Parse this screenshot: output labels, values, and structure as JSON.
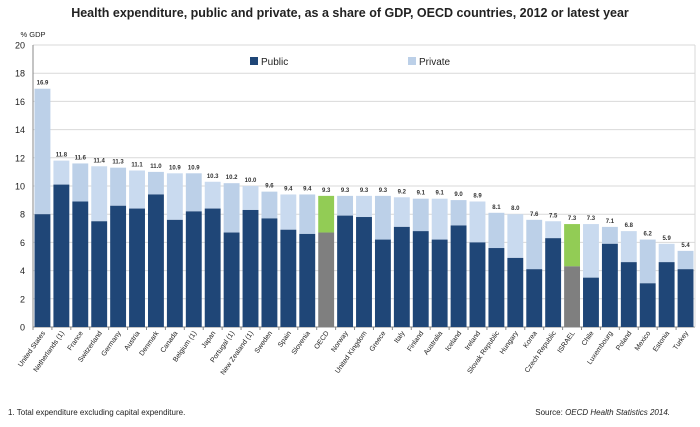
{
  "chart_data": {
    "type": "bar",
    "stacked": true,
    "title": "Health expenditure, public and private, as a share of GDP, OECD countries, 2012 or latest year",
    "ylabel": "% GDP",
    "ylim": [
      0,
      20
    ],
    "yticks": [
      0,
      2,
      4,
      6,
      8,
      10,
      12,
      14,
      16,
      18,
      20
    ],
    "grid": true,
    "legend": "top-center",
    "categories": [
      "United States",
      "Netherlands (1)",
      "France",
      "Switzerland",
      "Germany",
      "Austria",
      "Denmark",
      "Canada",
      "Belgium (1)",
      "Japan",
      "Portugal (1)",
      "New Zealand (1)",
      "Sweden",
      "Spain",
      "Slovenia",
      "OECD",
      "Norway",
      "United Kingdom",
      "Greece",
      "Italy",
      "Finland",
      "Australia",
      "Iceland",
      "Ireland",
      "Slovak Republic",
      "Hungary",
      "Korea",
      "Czech Republic",
      "ISRAEL",
      "Chile",
      "Luxembourg",
      "Poland",
      "Mexico",
      "Estonia",
      "Turkey"
    ],
    "totals": [
      16.9,
      11.8,
      11.6,
      11.4,
      11.3,
      11.1,
      11.0,
      10.9,
      10.9,
      10.3,
      10.2,
      10.0,
      9.6,
      9.4,
      9.4,
      9.3,
      9.3,
      9.3,
      9.3,
      9.2,
      9.1,
      9.1,
      9.0,
      8.9,
      8.1,
      8.0,
      7.6,
      7.5,
      7.3,
      7.3,
      7.1,
      6.8,
      6.2,
      5.9,
      5.4
    ],
    "total_labels": [
      "16.9",
      "11.8",
      "11.6",
      "11.4",
      "11.3",
      "11.1",
      "11.0",
      "10.9",
      "10.9",
      "10.3",
      "10.2",
      "10.0",
      "9.6",
      "9.4",
      "9.4",
      "9.3",
      "9.3",
      "9.3",
      "9.3",
      "9.2",
      "9.1",
      "9.1",
      "9.0",
      "8.9",
      "8.1",
      "8.0",
      "7.6",
      "7.5",
      "7.3",
      "7.3",
      "7.1",
      "6.8",
      "6.2",
      "5.9",
      "5.4"
    ],
    "series": [
      {
        "name": "Public",
        "values": [
          8.0,
          10.1,
          8.9,
          7.5,
          8.6,
          8.4,
          9.4,
          7.6,
          8.2,
          8.4,
          6.7,
          8.3,
          7.7,
          6.9,
          6.6,
          6.7,
          7.9,
          7.8,
          6.2,
          7.1,
          6.8,
          6.2,
          7.2,
          6.0,
          5.6,
          4.9,
          4.1,
          6.3,
          4.3,
          3.5,
          5.9,
          4.6,
          3.1,
          4.6,
          4.1
        ]
      },
      {
        "name": "Private",
        "values": [
          8.9,
          1.7,
          2.7,
          3.9,
          2.7,
          2.7,
          1.6,
          3.3,
          2.7,
          1.9,
          3.5,
          1.7,
          1.9,
          2.5,
          2.8,
          2.6,
          1.4,
          1.5,
          3.1,
          2.1,
          2.3,
          2.9,
          1.8,
          2.9,
          2.5,
          3.1,
          3.5,
          1.2,
          3.0,
          3.8,
          1.2,
          2.2,
          3.1,
          1.3,
          1.3
        ]
      }
    ],
    "highlighted": [
      "OECD",
      "ISRAEL"
    ],
    "colors": {
      "public": "#1f4677",
      "private": "#bcd0e8",
      "private_alt": "#c9daef",
      "highlight_public": "#7f7f7f",
      "highlight_private": "#92cc55",
      "grid": "#d9d9d9"
    }
  },
  "footnote": "1. Total expenditure excluding capital expenditure.",
  "source_label": "Source:",
  "source_text": "OECD Health Statistics 2014."
}
